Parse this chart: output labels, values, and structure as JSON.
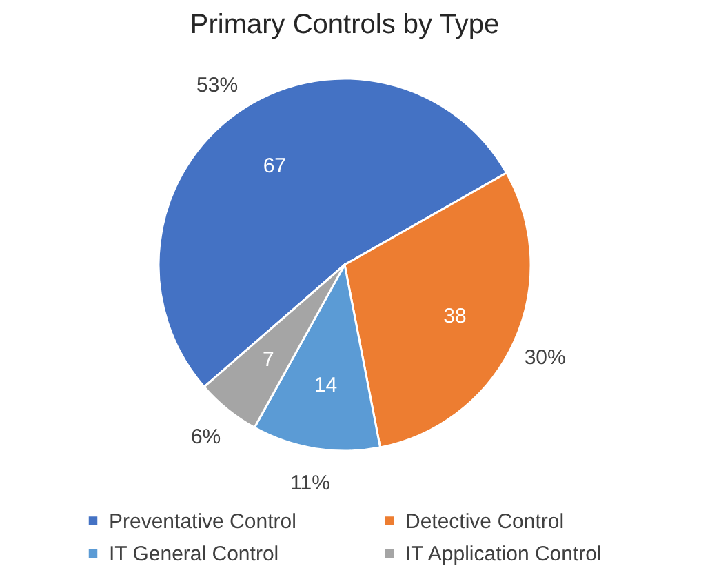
{
  "chart_data": {
    "type": "pie",
    "title": "Primary Controls by Type",
    "categories": [
      "Preventative Control",
      "Detective Control",
      "IT General Control",
      "IT Application Control"
    ],
    "values": [
      67,
      38,
      14,
      7
    ],
    "colors": [
      "#4472c4",
      "#ed7d31",
      "#5b9bd5",
      "#a5a5a5"
    ],
    "data_labels": true,
    "annotations": [
      "53%",
      "30%",
      "11%",
      "6%"
    ],
    "legend": "bottom"
  }
}
